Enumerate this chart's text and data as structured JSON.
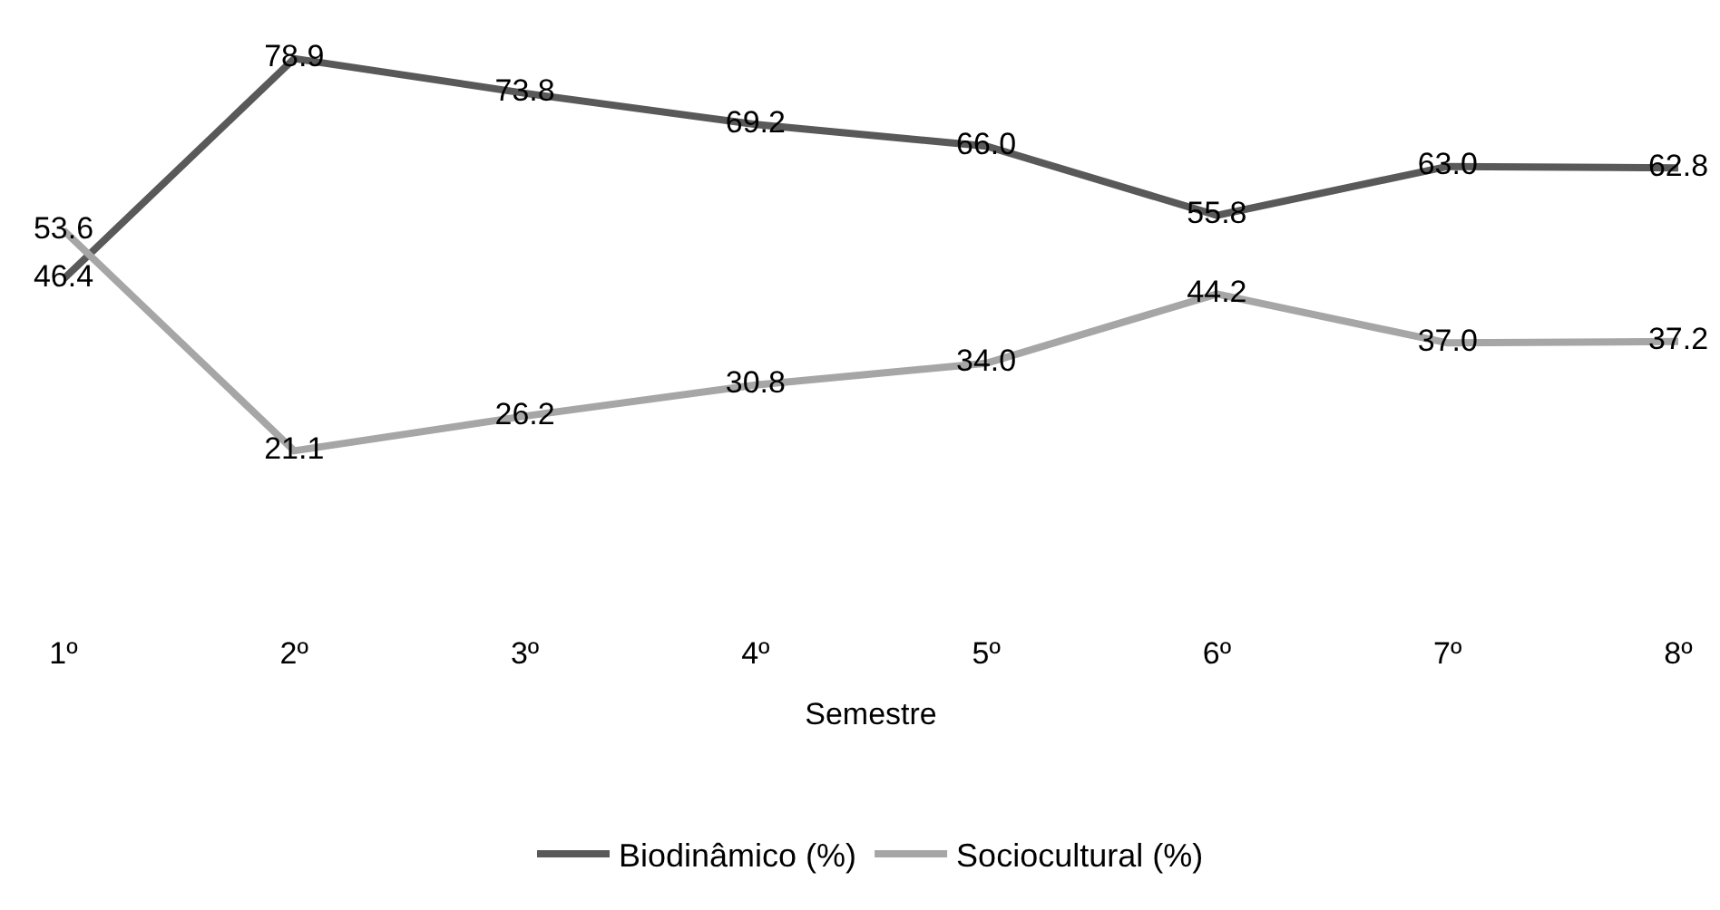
{
  "chart_data": {
    "type": "line",
    "xlabel": "Semestre",
    "categories": [
      "1º",
      "2º",
      "3º",
      "4º",
      "5º",
      "6º",
      "7º",
      "8º"
    ],
    "series": [
      {
        "name": "Biodinâmico (%)",
        "color": "#595959",
        "values": [
          46.4,
          78.9,
          73.8,
          69.2,
          66.0,
          55.8,
          63.0,
          62.8
        ],
        "value_labels": [
          "46.4",
          "78.9",
          "73.8",
          "69.2",
          "66.0",
          "55.8",
          "63.0",
          "62.8"
        ]
      },
      {
        "name": "Sociocultural (%)",
        "color": "#a6a6a6",
        "values": [
          53.6,
          21.1,
          26.2,
          30.8,
          34.0,
          44.2,
          37.0,
          37.2
        ],
        "value_labels": [
          "53.6",
          "21.1",
          "26.2",
          "30.8",
          "34.0",
          "44.2",
          "37.0",
          "37.2"
        ]
      }
    ],
    "data_labels": true,
    "grid": false,
    "legend": "bottom",
    "marker": "none",
    "line_style": "solid"
  }
}
